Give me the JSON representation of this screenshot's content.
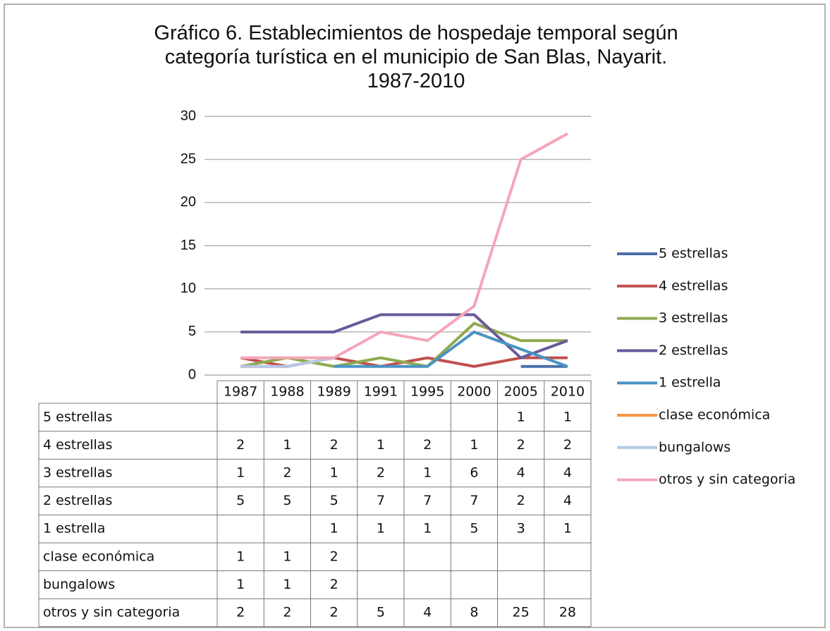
{
  "chart_data": {
    "type": "line",
    "title": "Gráfico 6. Establecimientos de hospedaje temporal según categoría turística en el municipio de San Blas, Nayarit. 1987-2010",
    "categories": [
      "1987",
      "1988",
      "1989",
      "1991",
      "1995",
      "2000",
      "2005",
      "2010"
    ],
    "series": [
      {
        "name": "5 estrellas",
        "color": "#4a6fa8",
        "values": [
          null,
          null,
          null,
          null,
          null,
          null,
          1,
          1
        ]
      },
      {
        "name": "4 estrellas",
        "color": "#c0504d",
        "values": [
          2,
          1,
          2,
          1,
          2,
          1,
          2,
          2
        ]
      },
      {
        "name": "3 estrellas",
        "color": "#8faa4f",
        "values": [
          1,
          2,
          1,
          2,
          1,
          6,
          4,
          4
        ]
      },
      {
        "name": "2 estrellas",
        "color": "#6a5a9a",
        "values": [
          5,
          5,
          5,
          7,
          7,
          7,
          2,
          4
        ]
      },
      {
        "name": "1 estrella",
        "color": "#4a93c4",
        "values": [
          null,
          null,
          1,
          1,
          1,
          5,
          3,
          1
        ]
      },
      {
        "name": "clase económica",
        "color": "#f79646",
        "values": [
          1,
          1,
          2,
          null,
          null,
          null,
          null,
          null
        ]
      },
      {
        "name": "bungalows",
        "color": "#b4c7e7",
        "values": [
          1,
          1,
          2,
          null,
          null,
          null,
          null,
          null
        ]
      },
      {
        "name": "otros y sin categoria",
        "color": "#f4a6b8",
        "values": [
          2,
          2,
          2,
          5,
          4,
          8,
          25,
          28
        ]
      }
    ],
    "ylim": [
      0,
      30
    ],
    "yticks": [
      0,
      5,
      10,
      15,
      20,
      25,
      30
    ],
    "grid": true,
    "legend": "right",
    "data_table": true
  }
}
